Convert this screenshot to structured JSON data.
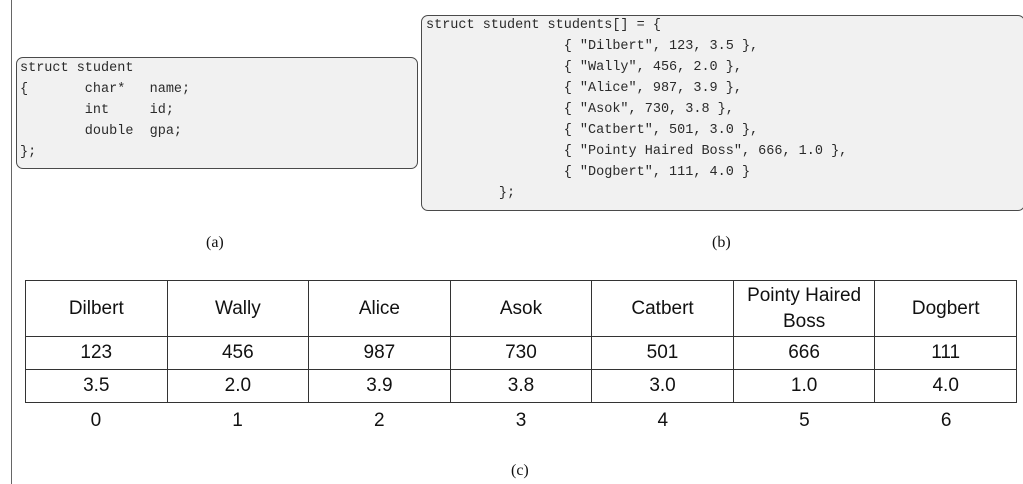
{
  "panel_a": {
    "lines": [
      "struct student",
      "{       char*   name;",
      "        int     id;",
      "        double  gpa;",
      "};"
    ],
    "caption": "(a)"
  },
  "panel_b": {
    "lines": [
      "struct student students[] = {",
      "                 { ″Dilbert″, 123, 3.5 },",
      "                 { ″Wally″, 456, 2.0 },",
      "                 { ″Alice″, 987, 3.9 },",
      "                 { ″Asok″, 730, 3.8 },",
      "                 { ″Catbert″, 501, 3.0 },",
      "                 { ″Pointy Haired Boss″, 666, 1.0 },",
      "                 { ″Dogbert″, 111, 4.0 }",
      "         };"
    ],
    "caption": "(b)"
  },
  "panel_c": {
    "columns": [
      {
        "name": "Dilbert",
        "id": "123",
        "gpa": "3.5",
        "index": "0"
      },
      {
        "name": "Wally",
        "id": "456",
        "gpa": "2.0",
        "index": "1"
      },
      {
        "name": "Alice",
        "id": "987",
        "gpa": "3.9",
        "index": "2"
      },
      {
        "name": "Asok",
        "id": "730",
        "gpa": "3.8",
        "index": "3"
      },
      {
        "name": "Catbert",
        "id": "501",
        "gpa": "3.0",
        "index": "4"
      },
      {
        "name": "Pointy Haired Boss",
        "id": "666",
        "gpa": "1.0",
        "index": "5"
      },
      {
        "name": "Dogbert",
        "id": "111",
        "gpa": "4.0",
        "index": "6"
      }
    ],
    "caption": "(c)"
  }
}
